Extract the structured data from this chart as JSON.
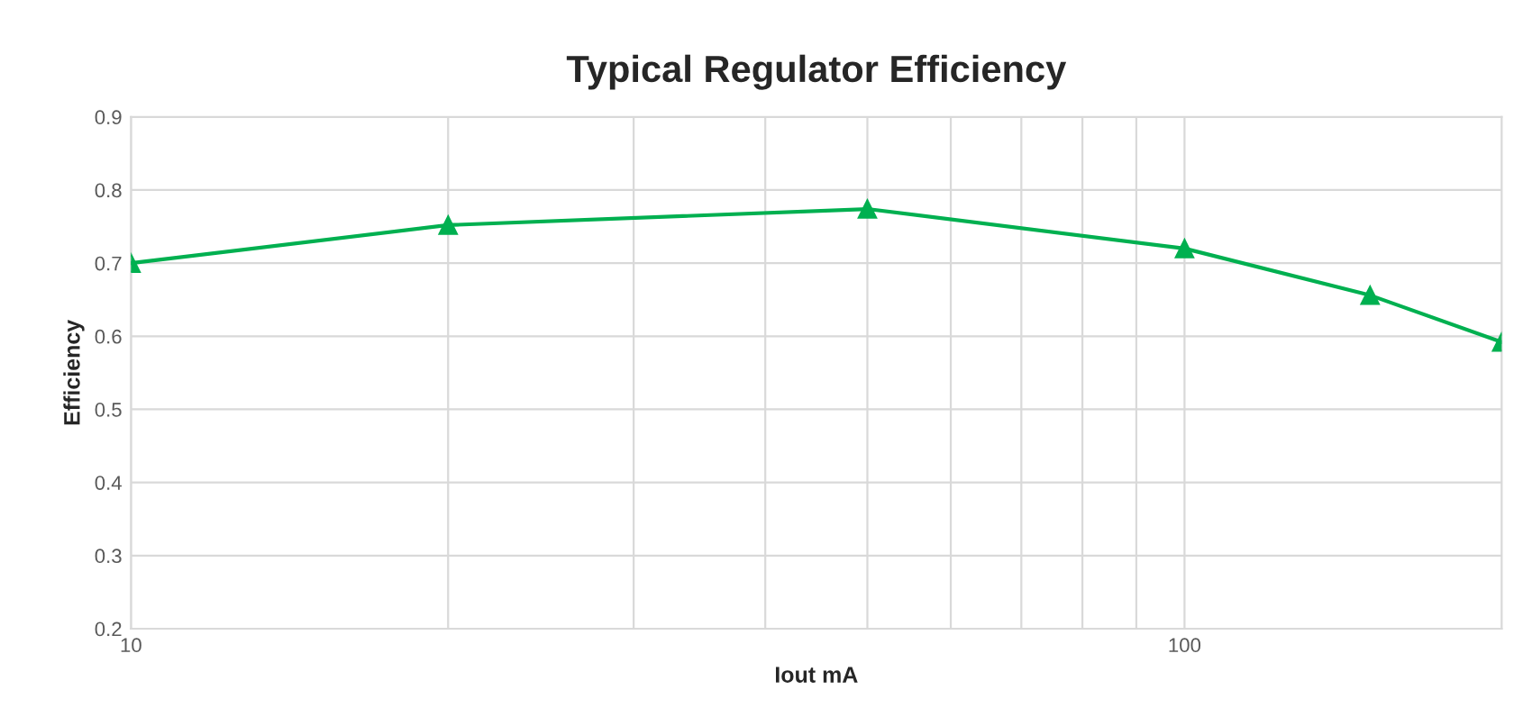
{
  "chart_data": {
    "type": "line",
    "title": "Typical Regulator Efficiency",
    "xlabel": "Iout mA",
    "ylabel": "Efficiency",
    "x": [
      10,
      20,
      50,
      100,
      150,
      200
    ],
    "series": [
      {
        "color": "#00b050",
        "values": [
          0.7,
          0.752,
          0.774,
          0.72,
          0.656,
          0.592
        ]
      }
    ],
    "log": "x",
    "xlim": [
      10,
      200
    ],
    "ylim": [
      0.2,
      0.9
    ],
    "xticks": [
      10,
      {
        "value": 20,
        "label": null
      },
      {
        "value": 30,
        "label": null
      },
      {
        "value": 40,
        "label": null
      },
      {
        "value": 50,
        "label": null
      },
      {
        "value": 60,
        "label": null
      },
      {
        "value": 70,
        "label": null
      },
      {
        "value": 80,
        "label": null
      },
      {
        "value": 90,
        "label": null
      },
      100
    ],
    "yticks": [
      0.2,
      0.3,
      0.4,
      0.5,
      0.6,
      0.7,
      0.8,
      0.9
    ],
    "grid": true,
    "marker": "triangle",
    "line_style": "solid"
  }
}
